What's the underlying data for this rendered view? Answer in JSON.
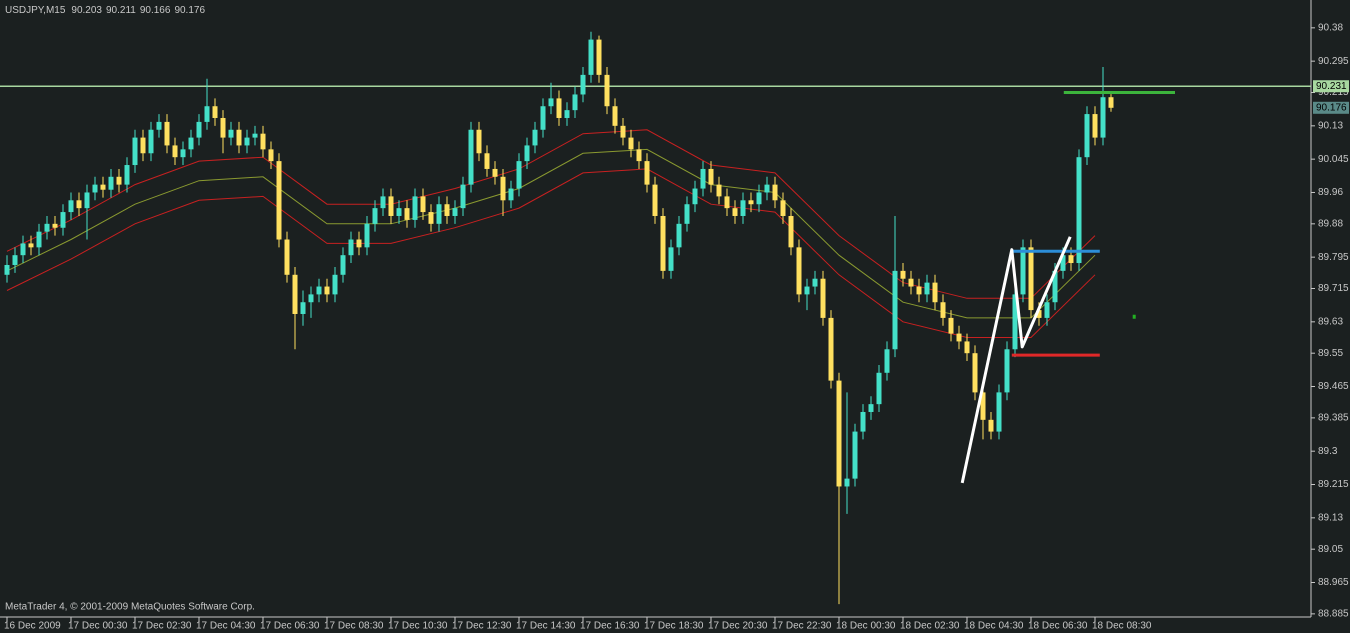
{
  "chart_data": {
    "type": "candlestick",
    "title": "USDJPY,M15",
    "footer": "MetaTrader 4, © 2001-2009 MetaQuotes Software Corp.",
    "colors": {
      "up": "#44e0c8",
      "down": "#ffe060",
      "background": "#1b2020",
      "axis": "#c8c8c8"
    },
    "open": [
      89.75,
      89.775,
      89.8,
      89.83,
      89.82,
      89.86,
      89.88,
      89.87,
      89.91,
      89.94,
      89.92,
      89.96,
      89.98,
      89.967,
      90.0,
      89.98,
      90.03,
      90.1,
      90.06,
      90.12,
      90.14,
      90.08,
      90.05,
      90.07,
      90.1,
      90.14,
      90.18,
      90.15,
      90.1,
      90.12,
      90.08,
      90.1,
      90.11,
      90.07,
      90.04,
      89.84,
      89.75,
      89.65,
      89.68,
      89.7,
      89.72,
      89.7,
      89.75,
      89.8,
      89.84,
      89.82,
      89.88,
      89.92,
      89.95,
      89.9,
      89.92,
      89.89,
      89.95,
      89.91,
      89.88,
      89.93,
      89.9,
      89.92,
      89.98,
      90.12,
      90.06,
      90.02,
      90.0,
      89.94,
      89.97,
      90.04,
      90.08,
      90.12,
      90.18,
      90.2,
      90.15,
      90.17,
      90.21,
      90.26,
      90.35,
      90.26,
      90.18,
      90.13,
      90.1,
      90.07,
      90.04,
      89.98,
      89.9,
      89.76,
      89.82,
      89.88,
      89.93,
      89.97,
      90.02,
      89.98,
      89.95,
      89.92,
      89.9,
      89.94,
      89.93,
      89.96,
      89.98,
      89.94,
      89.9,
      89.82,
      89.7,
      89.72,
      89.74,
      89.64,
      89.48,
      89.21,
      89.23,
      89.35,
      89.4,
      89.42,
      89.5,
      89.56,
      89.76,
      89.74,
      89.72,
      89.7,
      89.73,
      89.68,
      89.64,
      89.6,
      89.58,
      89.55,
      89.45,
      89.38,
      89.35,
      89.45,
      89.56,
      89.7,
      89.82,
      89.66,
      89.64,
      89.68,
      89.76,
      89.8,
      89.78,
      90.05,
      90.16,
      90.1,
      90.203
    ],
    "high": [
      89.8,
      89.82,
      89.85,
      89.85,
      89.88,
      89.9,
      89.9,
      89.93,
      89.96,
      89.96,
      89.98,
      90.0,
      90.0,
      90.02,
      90.02,
      90.05,
      90.12,
      90.12,
      90.14,
      90.16,
      90.16,
      90.1,
      90.09,
      90.12,
      90.16,
      90.25,
      90.2,
      90.17,
      90.14,
      90.14,
      90.12,
      90.13,
      90.13,
      90.09,
      90.06,
      89.86,
      89.77,
      89.71,
      89.72,
      89.74,
      89.74,
      89.77,
      89.82,
      89.86,
      89.86,
      89.9,
      89.94,
      89.97,
      89.97,
      89.94,
      89.94,
      89.97,
      89.97,
      89.93,
      89.95,
      89.95,
      89.94,
      90.0,
      90.14,
      90.14,
      90.08,
      90.04,
      90.02,
      89.99,
      90.06,
      90.1,
      90.14,
      90.2,
      90.24,
      90.22,
      90.19,
      90.23,
      90.28,
      90.37,
      90.36,
      90.28,
      90.2,
      90.15,
      90.12,
      90.09,
      90.06,
      90.0,
      89.92,
      89.84,
      89.9,
      89.95,
      89.99,
      90.04,
      90.04,
      90.0,
      89.97,
      89.94,
      89.96,
      89.96,
      89.98,
      90.0,
      90.0,
      89.96,
      89.92,
      89.84,
      89.74,
      89.76,
      89.76,
      89.66,
      89.5,
      89.45,
      89.37,
      89.42,
      89.44,
      89.52,
      89.58,
      89.9,
      89.78,
      89.76,
      89.74,
      89.75,
      89.75,
      89.7,
      89.66,
      89.62,
      89.6,
      89.57,
      89.47,
      89.4,
      89.47,
      89.58,
      89.72,
      89.84,
      89.84,
      89.68,
      89.7,
      89.78,
      89.82,
      89.82,
      90.07,
      90.18,
      90.18,
      90.28,
      90.211
    ],
    "low": [
      89.73,
      89.755,
      89.78,
      89.8,
      89.8,
      89.84,
      89.85,
      89.85,
      89.89,
      89.9,
      89.84,
      89.94,
      89.947,
      89.947,
      89.96,
      89.96,
      90.01,
      90.04,
      90.04,
      90.1,
      90.06,
      90.03,
      90.03,
      90.05,
      90.08,
      90.12,
      90.13,
      90.06,
      90.08,
      90.06,
      90.06,
      90.08,
      90.05,
      90.02,
      89.82,
      89.73,
      89.56,
      89.62,
      89.64,
      89.68,
      89.68,
      89.68,
      89.73,
      89.78,
      89.8,
      89.8,
      89.86,
      89.9,
      89.88,
      89.88,
      89.87,
      89.87,
      89.89,
      89.86,
      89.86,
      89.88,
      89.88,
      89.9,
      89.96,
      90.04,
      90.0,
      89.98,
      89.9,
      89.92,
      89.95,
      90.02,
      90.06,
      90.1,
      90.16,
      90.13,
      90.13,
      90.15,
      90.19,
      90.24,
      90.24,
      90.16,
      90.11,
      90.08,
      90.05,
      90.02,
      89.96,
      89.88,
      89.74,
      89.74,
      89.8,
      89.86,
      89.91,
      89.95,
      89.96,
      89.93,
      89.9,
      89.88,
      89.88,
      89.91,
      89.91,
      89.94,
      89.92,
      89.88,
      89.8,
      89.68,
      89.66,
      89.7,
      89.62,
      89.46,
      88.91,
      89.14,
      89.21,
      89.33,
      89.38,
      89.4,
      89.48,
      89.54,
      89.72,
      89.7,
      89.68,
      89.68,
      89.66,
      89.62,
      89.58,
      89.56,
      89.53,
      89.43,
      89.33,
      89.33,
      89.33,
      89.43,
      89.54,
      89.68,
      89.64,
      89.62,
      89.62,
      89.66,
      89.74,
      89.76,
      89.76,
      90.03,
      90.08,
      90.08,
      90.166
    ],
    "close": [
      89.775,
      89.8,
      89.83,
      89.82,
      89.86,
      89.88,
      89.87,
      89.91,
      89.94,
      89.92,
      89.96,
      89.98,
      89.967,
      90.0,
      89.98,
      90.03,
      90.1,
      90.06,
      90.12,
      90.14,
      90.08,
      90.05,
      90.07,
      90.1,
      90.14,
      90.18,
      90.15,
      90.1,
      90.12,
      90.08,
      90.1,
      90.11,
      90.07,
      90.04,
      89.84,
      89.75,
      89.65,
      89.68,
      89.7,
      89.72,
      89.7,
      89.75,
      89.8,
      89.84,
      89.82,
      89.88,
      89.92,
      89.95,
      89.9,
      89.92,
      89.89,
      89.95,
      89.91,
      89.88,
      89.93,
      89.9,
      89.92,
      89.98,
      90.12,
      90.06,
      90.02,
      90.0,
      89.94,
      89.97,
      90.04,
      90.08,
      90.12,
      90.18,
      90.2,
      90.15,
      90.17,
      90.21,
      90.26,
      90.35,
      90.26,
      90.18,
      90.13,
      90.1,
      90.07,
      90.04,
      89.98,
      89.9,
      89.76,
      89.82,
      89.88,
      89.93,
      89.97,
      90.02,
      89.98,
      89.95,
      89.92,
      89.9,
      89.94,
      89.93,
      89.96,
      89.98,
      89.94,
      89.9,
      89.82,
      89.7,
      89.72,
      89.74,
      89.64,
      89.48,
      89.21,
      89.23,
      89.35,
      89.4,
      89.42,
      89.5,
      89.56,
      89.76,
      89.74,
      89.72,
      89.7,
      89.73,
      89.68,
      89.64,
      89.6,
      89.58,
      89.55,
      89.45,
      89.38,
      89.35,
      89.45,
      89.56,
      89.7,
      89.82,
      89.66,
      89.64,
      89.68,
      89.76,
      89.8,
      89.78,
      90.05,
      90.16,
      90.1,
      90.203,
      90.176
    ],
    "ylim": [
      88.877,
      90.451
    ],
    "yticks": [
      90.38,
      90.295,
      90.215,
      90.13,
      90.045,
      89.96,
      89.88,
      89.795,
      89.715,
      89.63,
      89.55,
      89.465,
      89.385,
      89.3,
      89.215,
      89.13,
      89.05,
      88.965,
      88.885
    ],
    "xlim": [
      -0.875,
      163.0
    ],
    "xticks": [
      {
        "value": 0,
        "label": "16 Dec 2009"
      },
      {
        "value": 8,
        "label": "17 Dec 00:30"
      },
      {
        "value": 16,
        "label": "17 Dec 02:30"
      },
      {
        "value": 24,
        "label": "17 Dec 04:30"
      },
      {
        "value": 32,
        "label": "17 Dec 06:30"
      },
      {
        "value": 40,
        "label": "17 Dec 08:30"
      },
      {
        "value": 48,
        "label": "17 Dec 10:30"
      },
      {
        "value": 56,
        "label": "17 Dec 12:30"
      },
      {
        "value": 64,
        "label": "17 Dec 14:30"
      },
      {
        "value": 72,
        "label": "17 Dec 16:30"
      },
      {
        "value": 80,
        "label": "17 Dec 18:30"
      },
      {
        "value": 88,
        "label": "17 Dec 20:30"
      },
      {
        "value": 96,
        "label": "17 Dec 22:30"
      },
      {
        "value": 104,
        "label": "18 Dec 00:30"
      },
      {
        "value": 112,
        "label": "18 Dec 02:30"
      },
      {
        "value": 120,
        "label": "18 Dec 04:30"
      },
      {
        "value": 128,
        "label": "18 Dec 06:30"
      },
      {
        "value": 136,
        "label": "18 Dec 08:30"
      }
    ],
    "indicators": [
      {
        "color": "#c82020",
        "x": [
          0,
          8,
          16,
          24,
          32,
          40,
          48,
          56,
          64,
          72,
          80,
          88,
          96,
          104,
          112,
          120,
          128,
          136
        ],
        "values": [
          89.81,
          89.89,
          89.98,
          90.04,
          90.05,
          89.93,
          89.93,
          89.97,
          90.02,
          90.11,
          90.12,
          90.03,
          90.01,
          89.85,
          89.73,
          89.69,
          89.69,
          89.85
        ]
      },
      {
        "color": "#8a9a30",
        "x": [
          0,
          8,
          16,
          24,
          32,
          40,
          48,
          56,
          64,
          72,
          80,
          88,
          96,
          104,
          112,
          120,
          128,
          136
        ],
        "values": [
          89.76,
          89.84,
          89.93,
          89.99,
          90.0,
          89.88,
          89.88,
          89.92,
          89.97,
          90.06,
          90.07,
          89.98,
          89.96,
          89.8,
          89.68,
          89.64,
          89.64,
          89.8
        ]
      },
      {
        "color": "#c82020",
        "x": [
          0,
          8,
          16,
          24,
          32,
          40,
          48,
          56,
          64,
          72,
          80,
          88,
          96,
          104,
          112,
          120,
          128,
          136
        ],
        "values": [
          89.71,
          89.79,
          89.88,
          89.94,
          89.95,
          89.83,
          89.83,
          89.87,
          89.92,
          90.01,
          90.02,
          89.93,
          89.91,
          89.75,
          89.63,
          89.59,
          89.59,
          89.75
        ]
      }
    ],
    "hlines": [
      {
        "value": 90.231,
        "color": "#a8d8a0"
      }
    ],
    "segments": [
      {
        "color": "#3cb43c",
        "x": [
          132.1,
          146.0
        ],
        "values": [
          90.215,
          90.215
        ]
      },
      {
        "color": "#2c8ed8",
        "x": [
          125.6,
          136.6
        ],
        "values": [
          89.81,
          89.81
        ]
      },
      {
        "color": "#e02828",
        "x": [
          125.6,
          136.6
        ],
        "values": [
          89.545,
          89.545
        ]
      }
    ],
    "zigzag": {
      "color": "#ffffff",
      "x": [
        119.4,
        125.6,
        126.9,
        132.9
      ],
      "values": [
        89.219,
        89.814,
        89.566,
        89.847
      ]
    },
    "marker": {
      "color": "#22b022",
      "x": 140.9,
      "value": 89.643
    },
    "price_labels": [
      {
        "value": 90.231,
        "color": "#a8d8a0"
      },
      {
        "value": 90.176,
        "color": "#5a8a88"
      }
    ]
  }
}
